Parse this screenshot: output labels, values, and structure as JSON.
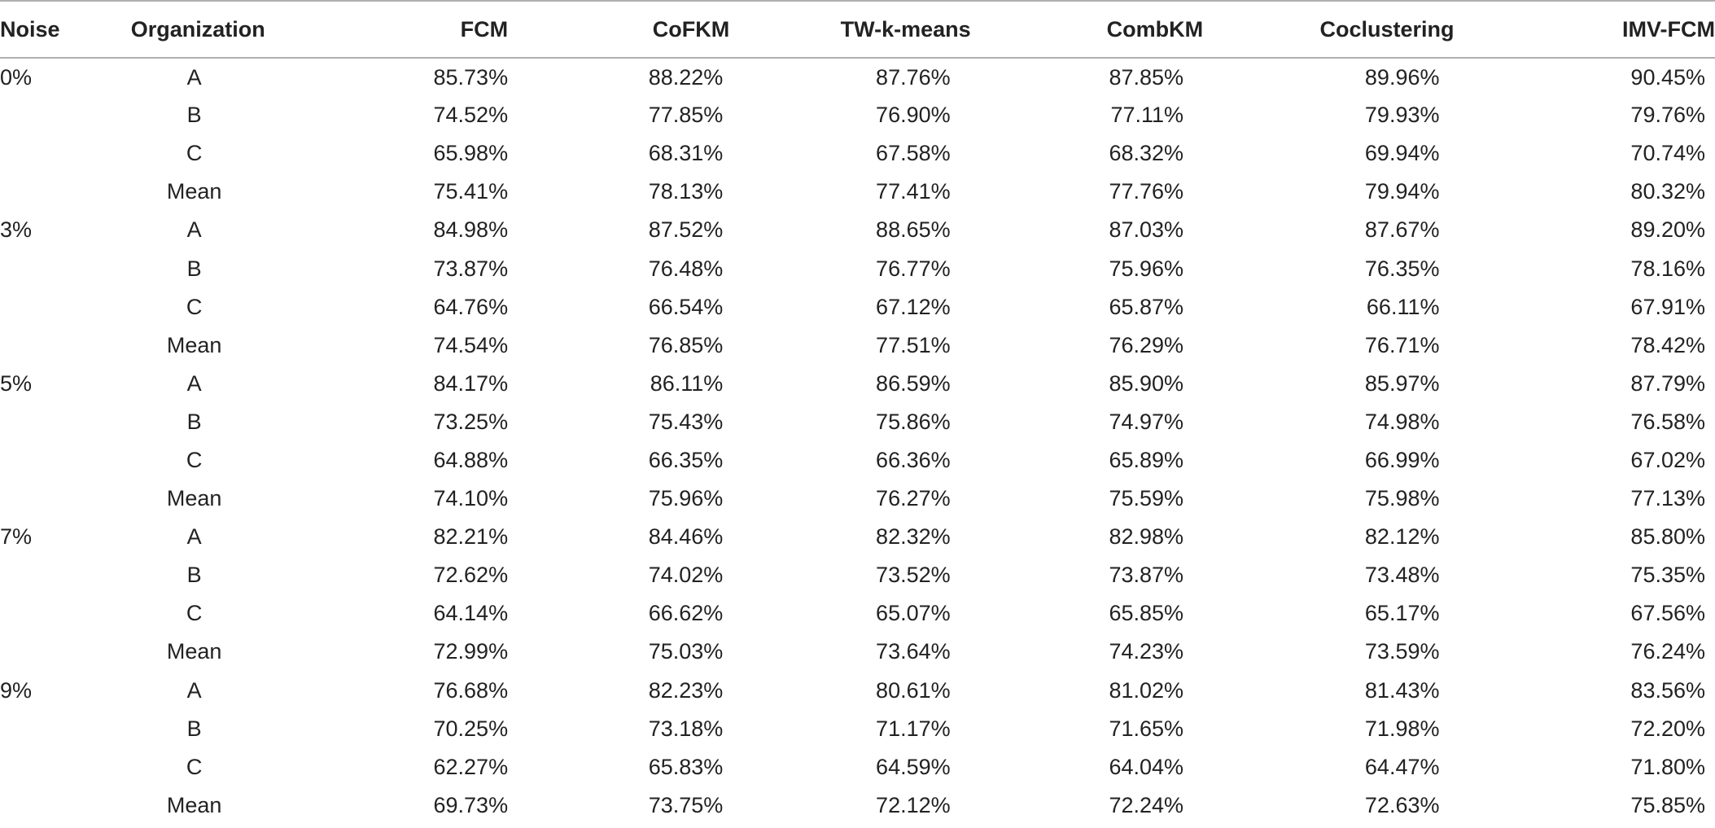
{
  "table": {
    "headers": [
      "Noise",
      "Organization",
      "FCM",
      "CoFKM",
      "TW-k-means",
      "CombKM",
      "Coclustering",
      "IMV-FCM"
    ],
    "rows": [
      [
        "0%",
        "A",
        "85.73%",
        "88.22%",
        "87.76%",
        "87.85%",
        "89.96%",
        "90.45%"
      ],
      [
        "",
        "B",
        "74.52%",
        "77.85%",
        "76.90%",
        "77.11%",
        "79.93%",
        "79.76%"
      ],
      [
        "",
        "C",
        "65.98%",
        "68.31%",
        "67.58%",
        "68.32%",
        "69.94%",
        "70.74%"
      ],
      [
        "",
        "Mean",
        "75.41%",
        "78.13%",
        "77.41%",
        "77.76%",
        "79.94%",
        "80.32%"
      ],
      [
        "3%",
        "A",
        "84.98%",
        "87.52%",
        "88.65%",
        "87.03%",
        "87.67%",
        "89.20%"
      ],
      [
        "",
        "B",
        "73.87%",
        "76.48%",
        "76.77%",
        "75.96%",
        "76.35%",
        "78.16%"
      ],
      [
        "",
        "C",
        "64.76%",
        "66.54%",
        "67.12%",
        "65.87%",
        "66.11%",
        "67.91%"
      ],
      [
        "",
        "Mean",
        "74.54%",
        "76.85%",
        "77.51%",
        "76.29%",
        "76.71%",
        "78.42%"
      ],
      [
        "5%",
        "A",
        "84.17%",
        "86.11%",
        "86.59%",
        "85.90%",
        "85.97%",
        "87.79%"
      ],
      [
        "",
        "B",
        "73.25%",
        "75.43%",
        "75.86%",
        "74.97%",
        "74.98%",
        "76.58%"
      ],
      [
        "",
        "C",
        "64.88%",
        "66.35%",
        "66.36%",
        "65.89%",
        "66.99%",
        "67.02%"
      ],
      [
        "",
        "Mean",
        "74.10%",
        "75.96%",
        "76.27%",
        "75.59%",
        "75.98%",
        "77.13%"
      ],
      [
        "7%",
        "A",
        "82.21%",
        "84.46%",
        "82.32%",
        "82.98%",
        "82.12%",
        "85.80%"
      ],
      [
        "",
        "B",
        "72.62%",
        "74.02%",
        "73.52%",
        "73.87%",
        "73.48%",
        "75.35%"
      ],
      [
        "",
        "C",
        "64.14%",
        "66.62%",
        "65.07%",
        "65.85%",
        "65.17%",
        "67.56%"
      ],
      [
        "",
        "Mean",
        "72.99%",
        "75.03%",
        "73.64%",
        "74.23%",
        "73.59%",
        "76.24%"
      ],
      [
        "9%",
        "A",
        "76.68%",
        "82.23%",
        "80.61%",
        "81.02%",
        "81.43%",
        "83.56%"
      ],
      [
        "",
        "B",
        "70.25%",
        "73.18%",
        "71.17%",
        "71.65%",
        "71.98%",
        "72.20%"
      ],
      [
        "",
        "C",
        "62.27%",
        "65.83%",
        "64.59%",
        "64.04%",
        "64.47%",
        "71.80%"
      ],
      [
        "",
        "Mean",
        "69.73%",
        "73.75%",
        "72.12%",
        "72.24%",
        "72.63%",
        "75.85%"
      ]
    ]
  }
}
